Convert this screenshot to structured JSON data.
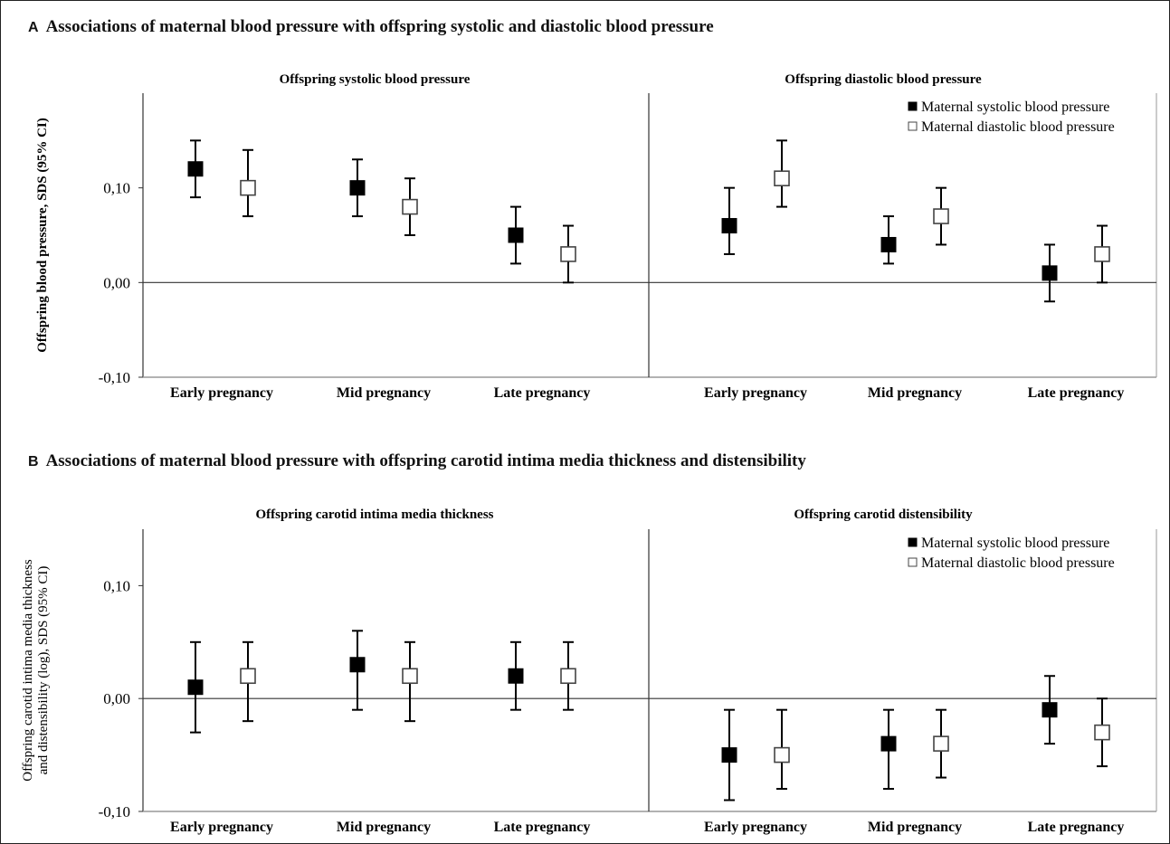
{
  "figure": {
    "panels": [
      {
        "letter": "A",
        "title": "Associations of maternal blood pressure with offspring systolic and diastolic blood pressure"
      },
      {
        "letter": "B",
        "title": "Associations of maternal blood pressure with offspring carotid intima media thickness and distensibility"
      }
    ]
  },
  "chart_data": [
    {
      "type": "scatter",
      "style": "error-bar",
      "panel": "A",
      "ylabel": [
        "Offspring blood pressure, SDS (95% CI)"
      ],
      "ylim": [
        -0.1,
        0.2
      ],
      "yticks": [
        -0.1,
        0.0,
        0.1
      ],
      "ytick_labels": [
        "-0,10",
        "0,00",
        "0,10"
      ],
      "categories": [
        "Early pregnancy",
        "Mid pregnancy",
        "Late pregnancy"
      ],
      "legend_position": "top-right of right sub-panel",
      "legend": [
        "Maternal systolic blood pressure",
        "Maternal diastolic blood pressure"
      ],
      "colors": {
        "systolic": "#000000",
        "diastolic": "#ffffff"
      },
      "subplots": [
        {
          "title": "Offspring systolic blood pressure",
          "series": [
            {
              "name": "Maternal systolic blood pressure",
              "values": [
                0.12,
                0.1,
                0.05
              ],
              "lower": [
                0.09,
                0.07,
                0.02
              ],
              "upper": [
                0.15,
                0.13,
                0.08
              ]
            },
            {
              "name": "Maternal diastolic blood pressure",
              "values": [
                0.1,
                0.08,
                0.03
              ],
              "lower": [
                0.07,
                0.05,
                0.0
              ],
              "upper": [
                0.14,
                0.11,
                0.06
              ]
            }
          ]
        },
        {
          "title": "Offspring diastolic blood pressure",
          "series": [
            {
              "name": "Maternal systolic blood pressure",
              "values": [
                0.06,
                0.04,
                0.01
              ],
              "lower": [
                0.03,
                0.02,
                -0.02
              ],
              "upper": [
                0.1,
                0.07,
                0.04
              ]
            },
            {
              "name": "Maternal diastolic blood pressure",
              "values": [
                0.11,
                0.07,
                0.03
              ],
              "lower": [
                0.08,
                0.04,
                0.0
              ],
              "upper": [
                0.15,
                0.1,
                0.06
              ]
            }
          ]
        }
      ]
    },
    {
      "type": "scatter",
      "style": "error-bar",
      "panel": "B",
      "ylabel": [
        "Offspring carotid intima media thickness",
        "and distensibility (log), SDS (95% CI)"
      ],
      "ylim": [
        -0.1,
        0.15
      ],
      "yticks": [
        -0.1,
        0.0,
        0.1
      ],
      "ytick_labels": [
        "-0,10",
        "0,00",
        "0,10"
      ],
      "categories": [
        "Early pregnancy",
        "Mid pregnancy",
        "Late pregnancy"
      ],
      "legend_position": "top-right of right sub-panel",
      "legend": [
        "Maternal systolic blood pressure",
        "Maternal diastolic blood pressure"
      ],
      "colors": {
        "systolic": "#000000",
        "diastolic": "#ffffff"
      },
      "subplots": [
        {
          "title": "Offspring carotid intima media thickness",
          "series": [
            {
              "name": "Maternal systolic blood pressure",
              "values": [
                0.01,
                0.03,
                0.02
              ],
              "lower": [
                -0.03,
                -0.01,
                -0.01
              ],
              "upper": [
                0.05,
                0.06,
                0.05
              ]
            },
            {
              "name": "Maternal diastolic blood pressure",
              "values": [
                0.02,
                0.02,
                0.02
              ],
              "lower": [
                -0.02,
                -0.02,
                -0.01
              ],
              "upper": [
                0.05,
                0.05,
                0.05
              ]
            }
          ]
        },
        {
          "title": "Offspring carotid distensibility",
          "series": [
            {
              "name": "Maternal systolic blood pressure",
              "values": [
                -0.05,
                -0.04,
                -0.01
              ],
              "lower": [
                -0.09,
                -0.08,
                -0.04
              ],
              "upper": [
                -0.01,
                -0.01,
                0.02
              ]
            },
            {
              "name": "Maternal diastolic blood pressure",
              "values": [
                -0.05,
                -0.04,
                -0.03
              ],
              "lower": [
                -0.08,
                -0.07,
                -0.06
              ],
              "upper": [
                -0.01,
                -0.01,
                0.0
              ]
            }
          ]
        }
      ]
    }
  ]
}
